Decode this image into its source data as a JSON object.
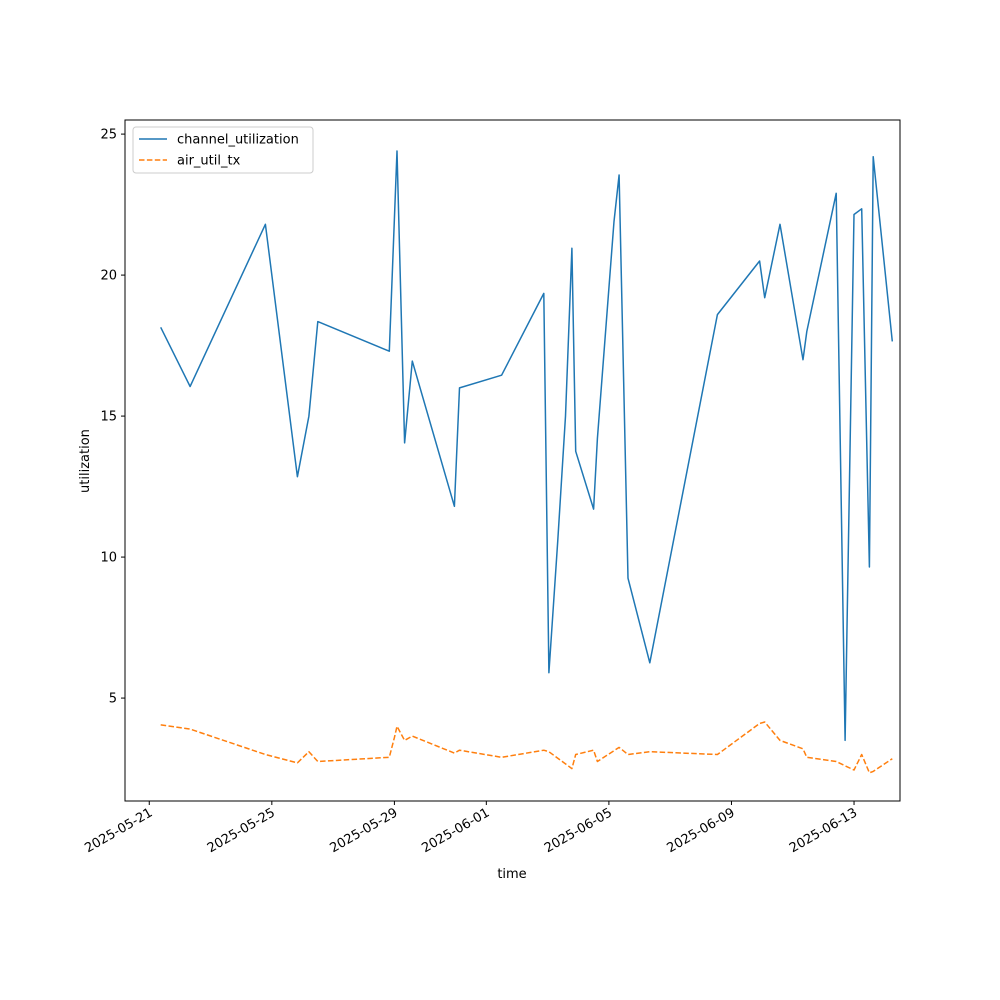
{
  "chart_data": {
    "type": "line",
    "xlabel": "time",
    "ylabel": "utilization",
    "x_axis_type": "date",
    "xlim": [
      "2025-05-20T05:00",
      "2025-06-14T12:00"
    ],
    "ylim": [
      1.35,
      25.5
    ],
    "x_ticks": [
      "2025-05-21",
      "2025-05-25",
      "2025-05-29",
      "2025-06-01",
      "2025-06-05",
      "2025-06-09",
      "2025-06-13"
    ],
    "y_ticks": [
      5,
      10,
      15,
      20,
      25
    ],
    "grid": false,
    "legend_position": "top-left",
    "series": [
      {
        "name": "channel_utilization",
        "color": "#1f77b4",
        "style": "solid",
        "points": [
          [
            "2025-05-21T09:00",
            18.15
          ],
          [
            "2025-05-22T08:00",
            16.05
          ],
          [
            "2025-05-24T19:00",
            21.8
          ],
          [
            "2025-05-25T20:00",
            12.85
          ],
          [
            "2025-05-26T05:00",
            15.0
          ],
          [
            "2025-05-26T12:00",
            18.35
          ],
          [
            "2025-05-28T20:00",
            17.3
          ],
          [
            "2025-05-29T00:00",
            22.0
          ],
          [
            "2025-05-29T02:00",
            24.4
          ],
          [
            "2025-05-29T08:00",
            14.05
          ],
          [
            "2025-05-29T14:00",
            16.95
          ],
          [
            "2025-05-30T23:00",
            11.8
          ],
          [
            "2025-05-31T03:00",
            16.0
          ],
          [
            "2025-06-01T12:00",
            16.45
          ],
          [
            "2025-06-02T21:00",
            19.35
          ],
          [
            "2025-06-03T01:00",
            5.9
          ],
          [
            "2025-06-03T08:00",
            10.6
          ],
          [
            "2025-06-03T14:00",
            15.0
          ],
          [
            "2025-06-03T19:00",
            20.95
          ],
          [
            "2025-06-03T22:00",
            13.75
          ],
          [
            "2025-06-04T12:00",
            11.7
          ],
          [
            "2025-06-04T15:00",
            14.2
          ],
          [
            "2025-06-05T04:00",
            21.9
          ],
          [
            "2025-06-05T08:00",
            23.55
          ],
          [
            "2025-06-05T15:00",
            9.25
          ],
          [
            "2025-06-06T08:00",
            6.25
          ],
          [
            "2025-06-08T13:00",
            18.6
          ],
          [
            "2025-06-09T22:00",
            20.5
          ],
          [
            "2025-06-10T02:00",
            19.2
          ],
          [
            "2025-06-10T14:00",
            21.8
          ],
          [
            "2025-06-11T08:00",
            17.0
          ],
          [
            "2025-06-11T11:00",
            18.0
          ],
          [
            "2025-06-12T10:00",
            22.9
          ],
          [
            "2025-06-12T17:00",
            3.5
          ],
          [
            "2025-06-13T00:00",
            22.15
          ],
          [
            "2025-06-13T06:00",
            22.35
          ],
          [
            "2025-06-13T12:00",
            9.65
          ],
          [
            "2025-06-13T15:00",
            24.2
          ],
          [
            "2025-06-14T06:00",
            17.65
          ]
        ]
      },
      {
        "name": "air_util_tx",
        "color": "#ff7f0e",
        "style": "dashed",
        "points": [
          [
            "2025-05-21T09:00",
            4.05
          ],
          [
            "2025-05-22T08:00",
            3.9
          ],
          [
            "2025-05-24T19:00",
            3.0
          ],
          [
            "2025-05-25T20:00",
            2.7
          ],
          [
            "2025-05-26T05:00",
            3.1
          ],
          [
            "2025-05-26T12:00",
            2.75
          ],
          [
            "2025-05-28T20:00",
            2.9
          ],
          [
            "2025-05-29T00:00",
            3.6
          ],
          [
            "2025-05-29T02:00",
            4.0
          ],
          [
            "2025-05-29T08:00",
            3.5
          ],
          [
            "2025-05-29T14:00",
            3.65
          ],
          [
            "2025-05-30T23:00",
            3.05
          ],
          [
            "2025-05-31T03:00",
            3.15
          ],
          [
            "2025-06-01T12:00",
            2.9
          ],
          [
            "2025-06-02T21:00",
            3.15
          ],
          [
            "2025-06-03T01:00",
            3.1
          ],
          [
            "2025-06-03T19:00",
            2.5
          ],
          [
            "2025-06-03T22:00",
            3.0
          ],
          [
            "2025-06-04T12:00",
            3.15
          ],
          [
            "2025-06-04T15:00",
            2.75
          ],
          [
            "2025-06-05T08:00",
            3.25
          ],
          [
            "2025-06-05T15:00",
            3.0
          ],
          [
            "2025-06-06T08:00",
            3.1
          ],
          [
            "2025-06-08T13:00",
            3.0
          ],
          [
            "2025-06-09T22:00",
            4.1
          ],
          [
            "2025-06-10T02:00",
            4.15
          ],
          [
            "2025-06-10T14:00",
            3.5
          ],
          [
            "2025-06-11T08:00",
            3.2
          ],
          [
            "2025-06-11T11:00",
            2.9
          ],
          [
            "2025-06-12T10:00",
            2.75
          ],
          [
            "2025-06-12T17:00",
            2.6
          ],
          [
            "2025-06-13T00:00",
            2.45
          ],
          [
            "2025-06-13T06:00",
            3.0
          ],
          [
            "2025-06-13T12:00",
            2.35
          ],
          [
            "2025-06-13T15:00",
            2.4
          ],
          [
            "2025-06-14T06:00",
            2.85
          ]
        ]
      }
    ]
  }
}
